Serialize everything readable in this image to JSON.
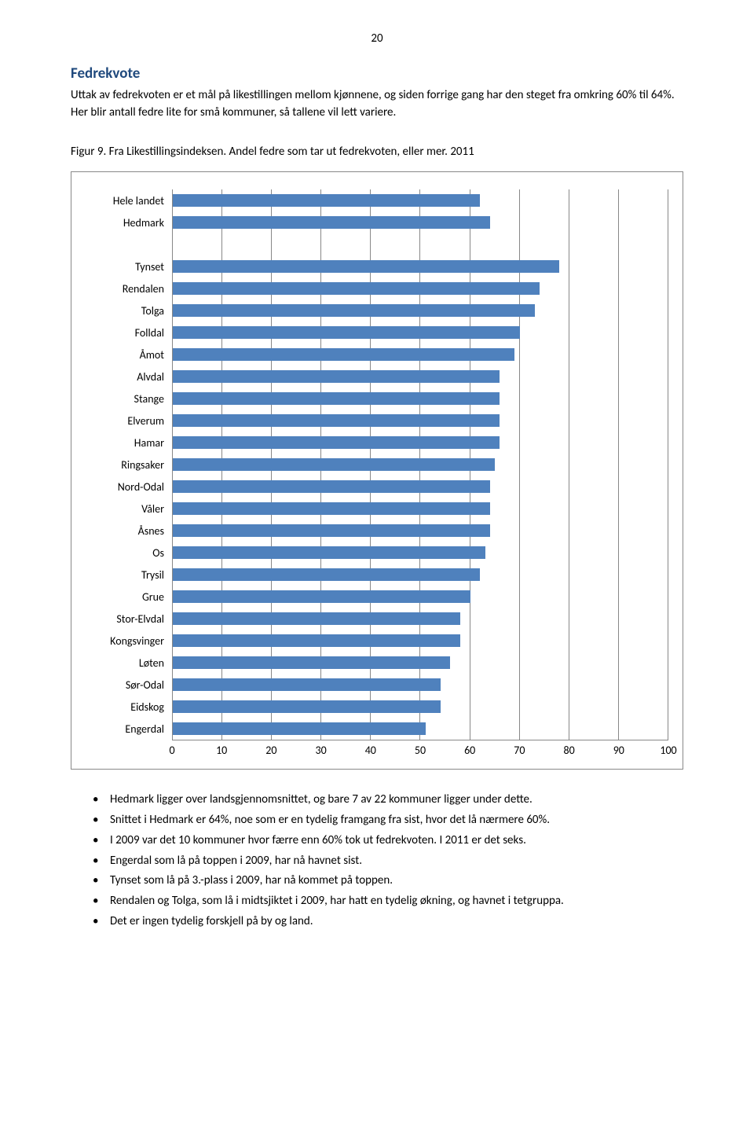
{
  "page_number": "20",
  "heading": "Fedrekvote",
  "intro": "Uttak av fedrekvoten er et mål på likestillingen mellom kjønnene, og siden forrige gang har den steget fra omkring 60% til 64%. Her blir antall fedre lite for små kommuner, så tallene vil lett variere.",
  "caption": "Figur 9. Fra Likestillingsindeksen. Andel fedre som tar ut fedrekvoten, eller mer. 2011",
  "chart": {
    "type": "bar-horizontal",
    "bar_color": "#4f81bd",
    "grid_color": "#888888",
    "background": "#ffffff",
    "label_fontsize": 14,
    "tick_fontsize": 14,
    "xmin": 0,
    "xmax": 100,
    "xtick_step": 10,
    "xticks": [
      0,
      10,
      20,
      30,
      40,
      50,
      60,
      70,
      80,
      90,
      100
    ],
    "group1": [
      {
        "label": "Hele landet",
        "value": 62
      },
      {
        "label": "Hedmark",
        "value": 64
      }
    ],
    "group2": [
      {
        "label": "Tynset",
        "value": 78
      },
      {
        "label": "Rendalen",
        "value": 74
      },
      {
        "label": "Tolga",
        "value": 73
      },
      {
        "label": "Folldal",
        "value": 70
      },
      {
        "label": "Åmot",
        "value": 69
      },
      {
        "label": "Alvdal",
        "value": 66
      },
      {
        "label": "Stange",
        "value": 66
      },
      {
        "label": "Elverum",
        "value": 66
      },
      {
        "label": "Hamar",
        "value": 66
      },
      {
        "label": "Ringsaker",
        "value": 65
      },
      {
        "label": "Nord-Odal",
        "value": 64
      },
      {
        "label": "Våler",
        "value": 64
      },
      {
        "label": "Åsnes",
        "value": 64
      },
      {
        "label": "Os",
        "value": 63
      },
      {
        "label": "Trysil",
        "value": 62
      },
      {
        "label": "Grue",
        "value": 60
      },
      {
        "label": "Stor-Elvdal",
        "value": 58
      },
      {
        "label": "Kongsvinger",
        "value": 58
      },
      {
        "label": "Løten",
        "value": 56
      },
      {
        "label": "Sør-Odal",
        "value": 54
      },
      {
        "label": "Eidskog",
        "value": 54
      },
      {
        "label": "Engerdal",
        "value": 51
      }
    ]
  },
  "bullets": [
    "Hedmark ligger over landsgjennomsnittet, og bare 7 av 22 kommuner ligger under dette.",
    "Snittet i Hedmark er 64%, noe som er en tydelig framgang fra sist, hvor det lå nærmere 60%.",
    "I 2009 var det 10 kommuner hvor færre enn 60% tok ut fedrekvoten. I 2011 er det seks.",
    "Engerdal som lå på toppen i 2009, har nå havnet sist.",
    "Tynset som lå på 3.-plass i 2009, har nå kommet på toppen.",
    "Rendalen og Tolga, som lå i midtsjiktet i 2009, har hatt en tydelig økning, og havnet i tetgruppa.",
    "Det er ingen tydelig forskjell på by og land."
  ]
}
